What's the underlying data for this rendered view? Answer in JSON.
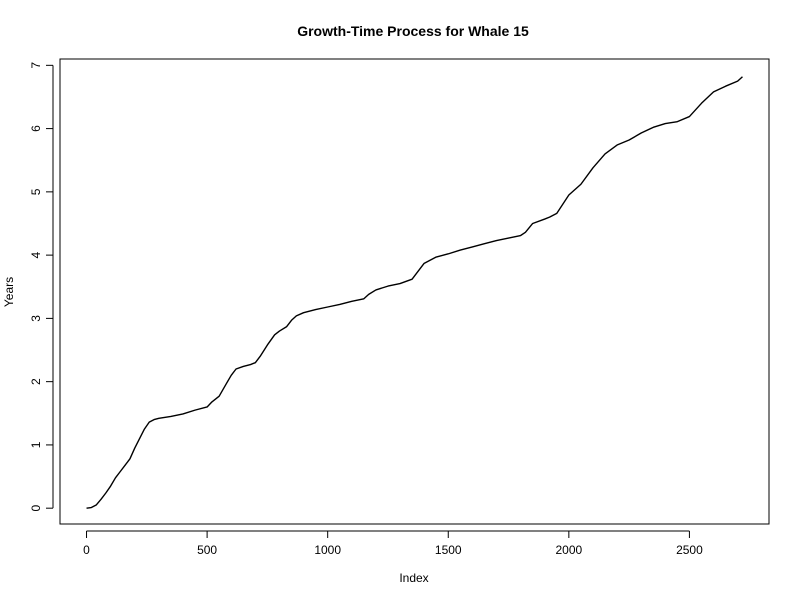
{
  "chart_data": {
    "type": "line",
    "title": "Growth-Time Process for Whale 15",
    "xlabel": "Index",
    "ylabel": "Years",
    "xlim": [
      -110,
      2830
    ],
    "ylim": [
      -0.25,
      7.1
    ],
    "x_ticks": [
      0,
      500,
      1000,
      1500,
      2000,
      2500
    ],
    "y_ticks": [
      0,
      1,
      2,
      3,
      4,
      5,
      6,
      7
    ],
    "x_tick_labels": [
      "0",
      "500",
      "1000",
      "1500",
      "2000",
      "2500"
    ],
    "y_tick_labels": [
      "0",
      "1",
      "2",
      "3",
      "4",
      "5",
      "6",
      "7"
    ],
    "grid": false,
    "line_color": "#000000",
    "series": [
      {
        "x": [
          0,
          20,
          40,
          60,
          80,
          100,
          120,
          140,
          160,
          180,
          200,
          220,
          240,
          260,
          280,
          300,
          350,
          400,
          450,
          500,
          520,
          550,
          580,
          600,
          620,
          650,
          680,
          700,
          720,
          750,
          780,
          800,
          830,
          850,
          870,
          900,
          950,
          1000,
          1050,
          1100,
          1150,
          1170,
          1200,
          1250,
          1300,
          1350,
          1370,
          1400,
          1450,
          1500,
          1550,
          1600,
          1650,
          1700,
          1750,
          1800,
          1820,
          1850,
          1900,
          1920,
          1950,
          2000,
          2050,
          2100,
          2150,
          2200,
          2250,
          2300,
          2350,
          2400,
          2450,
          2500,
          2550,
          2600,
          2650,
          2700,
          2720
        ],
        "y": [
          0.0,
          0.01,
          0.05,
          0.14,
          0.24,
          0.35,
          0.48,
          0.58,
          0.68,
          0.78,
          0.95,
          1.1,
          1.25,
          1.36,
          1.4,
          1.42,
          1.45,
          1.49,
          1.55,
          1.6,
          1.68,
          1.77,
          1.97,
          2.1,
          2.2,
          2.24,
          2.27,
          2.3,
          2.4,
          2.58,
          2.74,
          2.8,
          2.87,
          2.97,
          3.04,
          3.09,
          3.14,
          3.18,
          3.22,
          3.27,
          3.31,
          3.38,
          3.45,
          3.51,
          3.55,
          3.62,
          3.72,
          3.87,
          3.97,
          4.02,
          4.08,
          4.13,
          4.18,
          4.23,
          4.27,
          4.31,
          4.36,
          4.5,
          4.57,
          4.6,
          4.66,
          4.95,
          5.12,
          5.38,
          5.6,
          5.74,
          5.82,
          5.93,
          6.02,
          6.08,
          6.11,
          6.19,
          6.4,
          6.58,
          6.67,
          6.75,
          6.82
        ]
      }
    ]
  }
}
